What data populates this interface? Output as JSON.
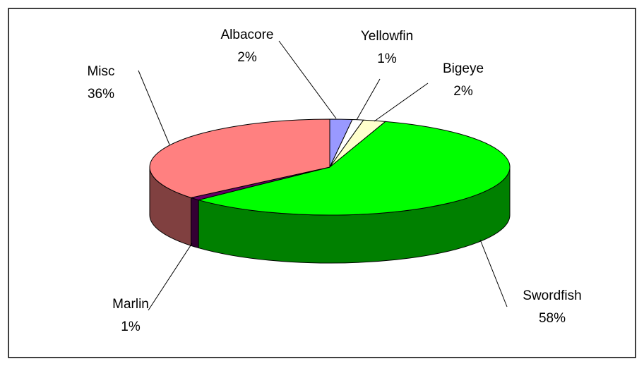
{
  "chart_data": {
    "type": "pie",
    "categories": [
      "Albacore",
      "Yellowfin",
      "Bigeye",
      "Swordfish",
      "Marlin",
      "Misc"
    ],
    "values": [
      2,
      1,
      2,
      58,
      1,
      36
    ],
    "value_labels": [
      "2%",
      "1%",
      "2%",
      "58%",
      "1%",
      "36%"
    ],
    "colors": [
      "#9999ff",
      "#ffffff",
      "#ffffcc",
      "#00ff00",
      "#660066",
      "#ff8080"
    ]
  }
}
